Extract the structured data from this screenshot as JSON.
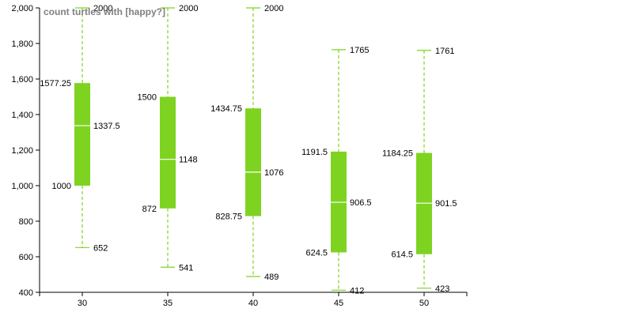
{
  "chart_data": {
    "type": "boxplot",
    "title": "count turtles with [happy?]",
    "xlabel": "",
    "ylabel": "",
    "categories": [
      "30",
      "35",
      "40",
      "45",
      "50"
    ],
    "ylim": [
      400,
      2000
    ],
    "yticks": [
      400,
      600,
      800,
      1000,
      1200,
      1400,
      1600,
      1800,
      2000
    ],
    "ytick_labels": [
      "400",
      "600",
      "800",
      "1,000",
      "1,200",
      "1,400",
      "1,600",
      "1,800",
      "2,000"
    ],
    "grid": false,
    "color": "#7ed321",
    "boxes": [
      {
        "category": "30",
        "min": 652,
        "q1": 1000,
        "median": 1337.5,
        "q3": 1577.25,
        "max": 2000
      },
      {
        "category": "35",
        "min": 541,
        "q1": 872,
        "median": 1148,
        "q3": 1500,
        "max": 2000
      },
      {
        "category": "40",
        "min": 489,
        "q1": 828.75,
        "median": 1076,
        "q3": 1434.75,
        "max": 2000
      },
      {
        "category": "45",
        "min": 412,
        "q1": 624.5,
        "median": 906.5,
        "q3": 1191.5,
        "max": 1765
      },
      {
        "category": "50",
        "min": 423,
        "q1": 614.5,
        "median": 901.5,
        "q3": 1184.25,
        "max": 1761
      }
    ]
  }
}
